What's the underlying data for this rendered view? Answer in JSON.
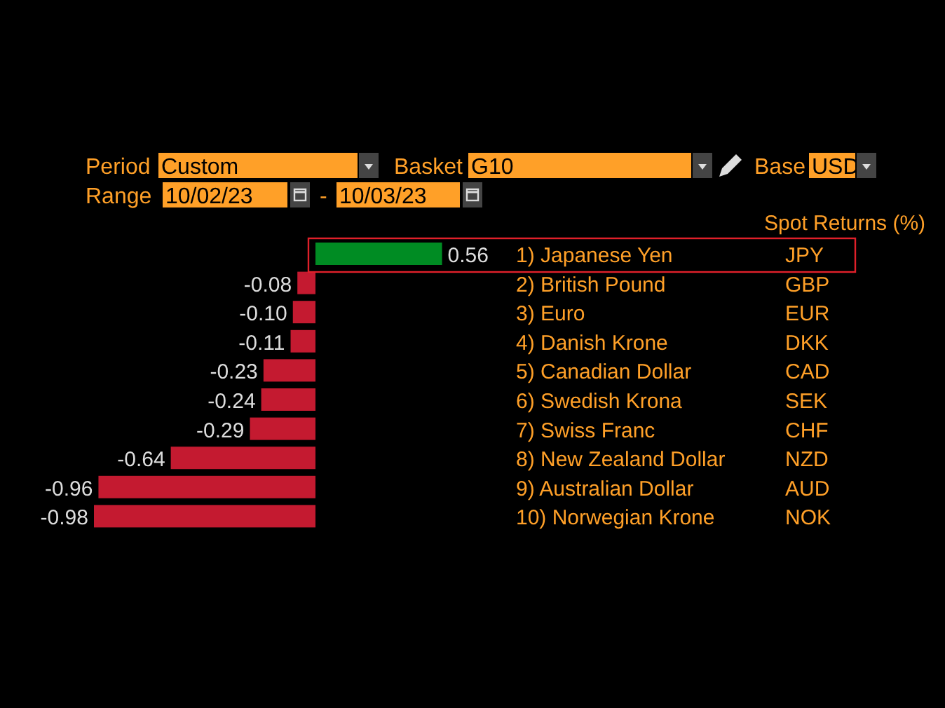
{
  "chart_data": {
    "type": "bar",
    "orientation": "horizontal",
    "title": "Spot Returns (%)",
    "categories": [
      "1) Japanese Yen",
      "2) British Pound",
      "3) Euro",
      "4) Danish Krone",
      "5) Canadian Dollar",
      "6) Swedish Krona",
      "7) Swiss Franc",
      "8) New Zealand Dollar",
      "9) Australian Dollar",
      "10) Norwegian Krone"
    ],
    "y2_categories": [
      "JPY",
      "GBP",
      "EUR",
      "DKK",
      "CAD",
      "SEK",
      "CHF",
      "NZD",
      "AUD",
      "NOK"
    ],
    "values": [
      0.56,
      -0.08,
      -0.1,
      -0.11,
      -0.23,
      -0.24,
      -0.29,
      -0.64,
      -0.96,
      -0.98
    ],
    "colors": [
      "#008c23",
      "#c41a30",
      "#c41a30",
      "#c41a30",
      "#c41a30",
      "#c41a30",
      "#c41a30",
      "#c41a30",
      "#c41a30",
      "#c41a30"
    ],
    "value_labels": [
      "0.56",
      "-0.08",
      "-0.10",
      "-0.11",
      "-0.23",
      "-0.24",
      "-0.29",
      "-0.64",
      "-0.96",
      "-0.98"
    ],
    "annotations": [
      "Period",
      "Custom",
      "Basket",
      "G10",
      "Base",
      "USD",
      "Range",
      "10/02/23",
      "-",
      "10/03/23"
    ]
  }
}
